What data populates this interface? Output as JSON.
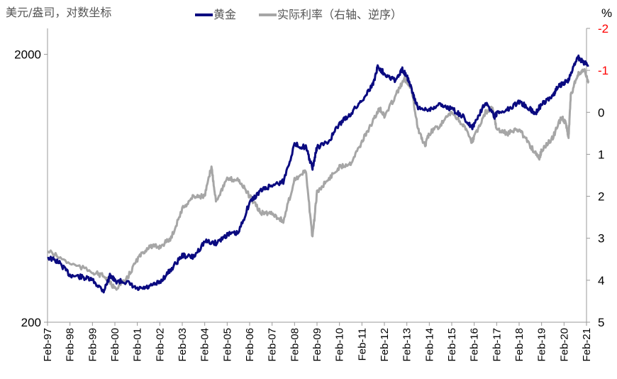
{
  "chart_data": {
    "type": "line",
    "left_axis_label": "美元/盎司，对数坐标",
    "right_axis_label": "%",
    "left_axis": {
      "scale": "log",
      "ylim": [
        200,
        2500
      ],
      "ticks": [
        "2000",
        "200"
      ],
      "tick_values": [
        2000,
        200
      ]
    },
    "right_axis": {
      "scale": "linear",
      "reversed": true,
      "ylim": [
        -2,
        5
      ],
      "ticks": [
        "-2",
        "-1",
        "0",
        "1",
        "2",
        "3",
        "4",
        "5"
      ],
      "tick_values": [
        -2,
        -1,
        0,
        1,
        2,
        3,
        4,
        5
      ],
      "negative_color": "#ff0000"
    },
    "x_ticks": [
      "Feb-97",
      "Feb-98",
      "Feb-99",
      "Feb-00",
      "Feb-01",
      "Feb-02",
      "Feb-03",
      "Feb-04",
      "Feb-05",
      "Feb-06",
      "Feb-07",
      "Feb-08",
      "Feb-09",
      "Feb-10",
      "Feb-11",
      "Feb-12",
      "Feb-13",
      "Feb-14",
      "Feb-15",
      "Feb-16",
      "Feb-17",
      "Feb-18",
      "Feb-19",
      "Feb-20",
      "Feb-21"
    ],
    "xlim": [
      1997.0,
      2021.0
    ],
    "legend": "top",
    "series": [
      {
        "name": "黄金",
        "axis": "left",
        "color": "#0a0a80",
        "x": [
          1997,
          1997.5,
          1998,
          1998.5,
          1999,
          1999.5,
          1999.8,
          2000,
          2000.5,
          2001,
          2001.5,
          2002,
          2002.5,
          2003,
          2003.5,
          2004,
          2004.5,
          2005,
          2005.5,
          2006,
          2006.5,
          2007,
          2007.5,
          2008,
          2008.5,
          2008.8,
          2009,
          2009.5,
          2010,
          2010.5,
          2011,
          2011.5,
          2011.7,
          2012,
          2012.5,
          2012.8,
          2013,
          2013.3,
          2013.5,
          2014,
          2014.5,
          2015,
          2015.5,
          2015.9,
          2016,
          2016.5,
          2016.9,
          2017,
          2017.5,
          2018,
          2018.5,
          2018.7,
          2019,
          2019.5,
          2019.7,
          2020,
          2020.2,
          2020.6,
          2020.8,
          2021.1
        ],
        "values": [
          350,
          335,
          300,
          295,
          287,
          262,
          300,
          285,
          283,
          265,
          270,
          282,
          315,
          355,
          350,
          400,
          395,
          425,
          430,
          560,
          620,
          650,
          670,
          920,
          900,
          750,
          900,
          940,
          1100,
          1200,
          1350,
          1550,
          1800,
          1700,
          1600,
          1750,
          1670,
          1400,
          1250,
          1250,
          1300,
          1250,
          1170,
          1060,
          1100,
          1330,
          1170,
          1200,
          1250,
          1330,
          1250,
          1200,
          1300,
          1400,
          1500,
          1570,
          1600,
          1970,
          1880,
          1820
        ]
      },
      {
        "name": "实际利率（右轴、逆序）",
        "axis": "right",
        "color": "#a6a6a6",
        "x": [
          1997,
          1998,
          1999,
          1999.5,
          2000,
          2000.5,
          2001,
          2001.5,
          2002,
          2002.5,
          2003,
          2003.5,
          2004,
          2004.3,
          2004.5,
          2005,
          2005.5,
          2006,
          2006.5,
          2007,
          2007.5,
          2008,
          2008.5,
          2008.8,
          2009,
          2009.5,
          2010,
          2010.5,
          2011,
          2011.5,
          2011.8,
          2012,
          2012.5,
          2012.9,
          2013.2,
          2013.5,
          2013.8,
          2014,
          2014.5,
          2015,
          2015.5,
          2015.9,
          2016,
          2016.5,
          2016.8,
          2017,
          2017.5,
          2018,
          2018.5,
          2018.9,
          2019,
          2019.5,
          2019.9,
          2020.1,
          2020.2,
          2020.3,
          2020.6,
          2020.9,
          2021.1
        ],
        "values": [
          3.3,
          3.6,
          3.8,
          3.9,
          4.2,
          4.0,
          3.5,
          3.2,
          3.2,
          3.0,
          2.3,
          2.0,
          2.0,
          1.3,
          2.1,
          1.6,
          1.6,
          2.0,
          2.4,
          2.4,
          2.6,
          1.6,
          1.4,
          3.0,
          1.9,
          1.6,
          1.3,
          1.2,
          0.7,
          0.2,
          -0.1,
          0.1,
          -0.4,
          -0.8,
          -0.6,
          0.4,
          0.8,
          0.5,
          0.3,
          0.0,
          0.3,
          0.7,
          0.6,
          0.0,
          -0.1,
          0.4,
          0.5,
          0.4,
          0.8,
          1.1,
          0.9,
          0.6,
          0.1,
          0.3,
          0.6,
          -0.4,
          -0.9,
          -1.0,
          -0.7
        ]
      }
    ]
  }
}
